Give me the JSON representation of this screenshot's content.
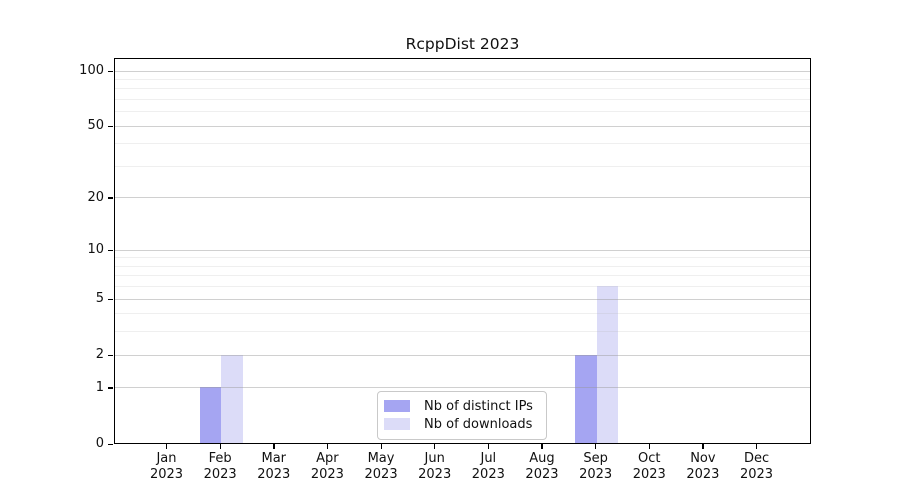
{
  "chart_data": {
    "type": "bar",
    "title": "RcppDist 2023",
    "categories": [
      "Jan 2023",
      "Feb 2023",
      "Mar 2023",
      "Apr 2023",
      "May 2023",
      "Jun 2023",
      "Jul 2023",
      "Aug 2023",
      "Sep 2023",
      "Oct 2023",
      "Nov 2023",
      "Dec 2023"
    ],
    "months": [
      "Jan",
      "Feb",
      "Mar",
      "Apr",
      "May",
      "Jun",
      "Jul",
      "Aug",
      "Sep",
      "Oct",
      "Nov",
      "Dec"
    ],
    "year": "2023",
    "series": [
      {
        "name": "Nb of distinct IPs",
        "color": "#a5a5f2",
        "values": [
          0,
          1,
          0,
          0,
          0,
          0,
          0,
          0,
          2,
          0,
          0,
          0
        ]
      },
      {
        "name": "Nb of downloads",
        "color": "#dcdcf8",
        "values": [
          0,
          2,
          0,
          0,
          0,
          0,
          0,
          0,
          6,
          0,
          0,
          0
        ]
      }
    ],
    "xlabel": "",
    "ylabel": "",
    "yscale": "log1p",
    "ylim": [
      0,
      117
    ],
    "ytick_labels": [
      0,
      1,
      2,
      5,
      10,
      20,
      50,
      100
    ],
    "minor_grid_values": [
      3,
      4,
      6,
      7,
      8,
      9,
      30,
      40,
      60,
      70,
      80,
      90
    ],
    "grid": true,
    "legend_position": "lower center inside"
  },
  "colors": {
    "axis": "#000000",
    "text": "#111111",
    "bar_distinct_ips": "#a5a5f2",
    "bar_downloads": "#dcdcf8",
    "legend_border": "#c9c9c9"
  }
}
